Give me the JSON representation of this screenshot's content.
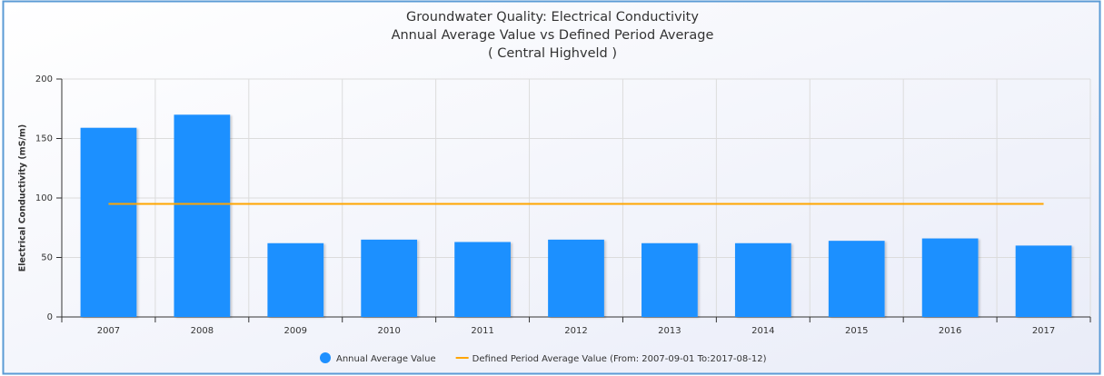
{
  "chart_data": {
    "type": "bar",
    "title": "Groundwater Quality: Electrical Conductivity",
    "subtitle": "Annual Average Value vs Defined Period Average",
    "subtitle2": "( Central Highveld )",
    "y_label": "Electrical Conductivity (mS/m)",
    "categories": [
      "2007",
      "2008",
      "2009",
      "2010",
      "2011",
      "2012",
      "2013",
      "2014",
      "2015",
      "2016",
      "2017"
    ],
    "series": [
      {
        "name": "Annual Average Value",
        "type": "bar",
        "color": "#1e90ff",
        "values": [
          159,
          170,
          62,
          65,
          63,
          65,
          62,
          62,
          64,
          66,
          60
        ]
      },
      {
        "name": "Defined Period Average Value (From: 2007-09-01 To:2017-08-12)",
        "type": "line",
        "color": "#ffa500",
        "values": [
          95,
          95,
          95,
          95,
          95,
          95,
          95,
          95,
          95,
          95,
          95
        ]
      }
    ],
    "ylim": [
      0,
      200
    ],
    "yticks": [
      0,
      50,
      100,
      150,
      200
    ],
    "grid": true
  }
}
